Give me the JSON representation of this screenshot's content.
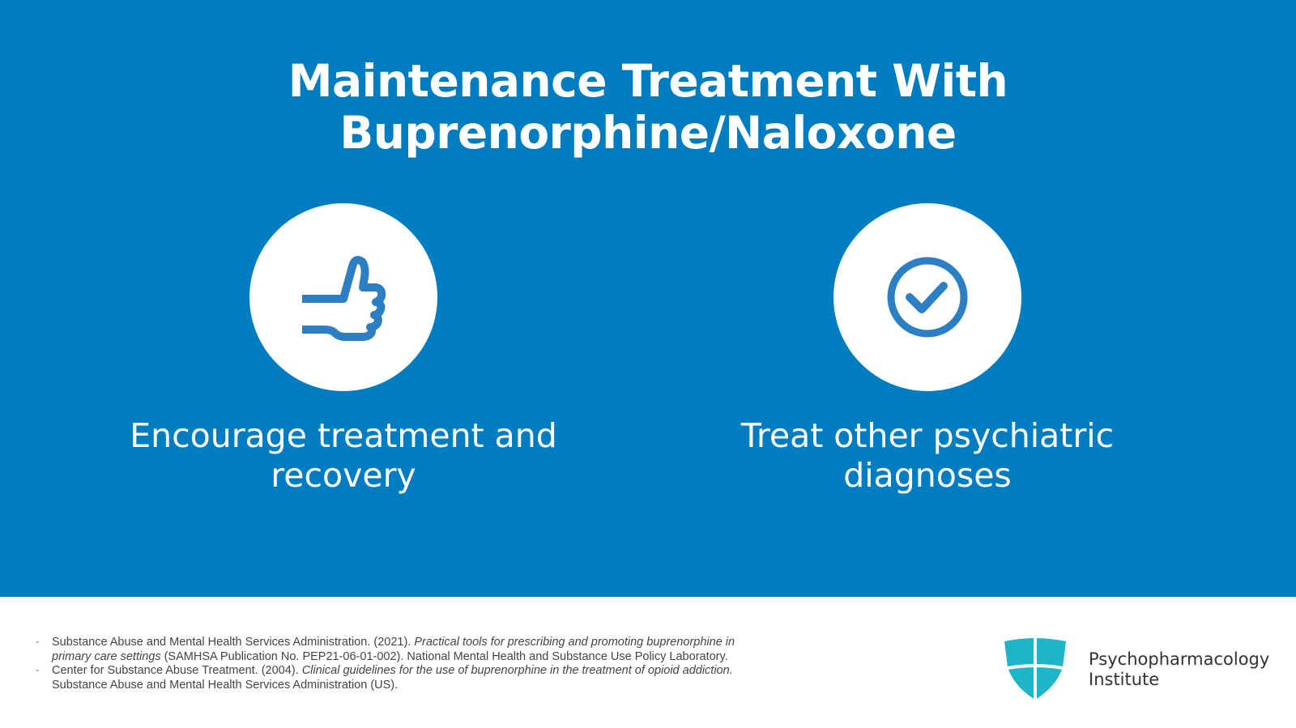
{
  "slide": {
    "title": "Maintenance Treatment With Buprenorphine/Naloxone",
    "items": [
      {
        "icon": "thumbs-up-icon",
        "caption_line1": "Encourage treatment and",
        "caption_line2": "recovery"
      },
      {
        "icon": "check-circle-icon",
        "caption_line1": "Treat other psychiatric",
        "caption_line2": "diagnoses"
      }
    ]
  },
  "references": [
    {
      "dash": "-",
      "plain1": "Substance Abuse and Mental Health Services Administration. (2021). ",
      "italic": "Practical tools for prescribing and promoting buprenorphine in primary care settings",
      "plain2": " (SAMHSA Publication No. PEP21-06-01-002). National Mental Health and Substance Use Policy Laboratory."
    },
    {
      "dash": "-",
      "plain1": "Center for Substance Abuse Treatment. (2004). ",
      "italic": "Clinical guidelines for the use of buprenorphine in the treatment of opioid addiction.",
      "plain2": " Substance Abuse and Mental Health Services Administration (US)."
    }
  ],
  "brand": {
    "line1": "Psychopharmacology",
    "line2": "Institute"
  },
  "colors": {
    "background": "#007dc0",
    "icon": "#2d7fc3",
    "logo": "#1fb5c8"
  }
}
